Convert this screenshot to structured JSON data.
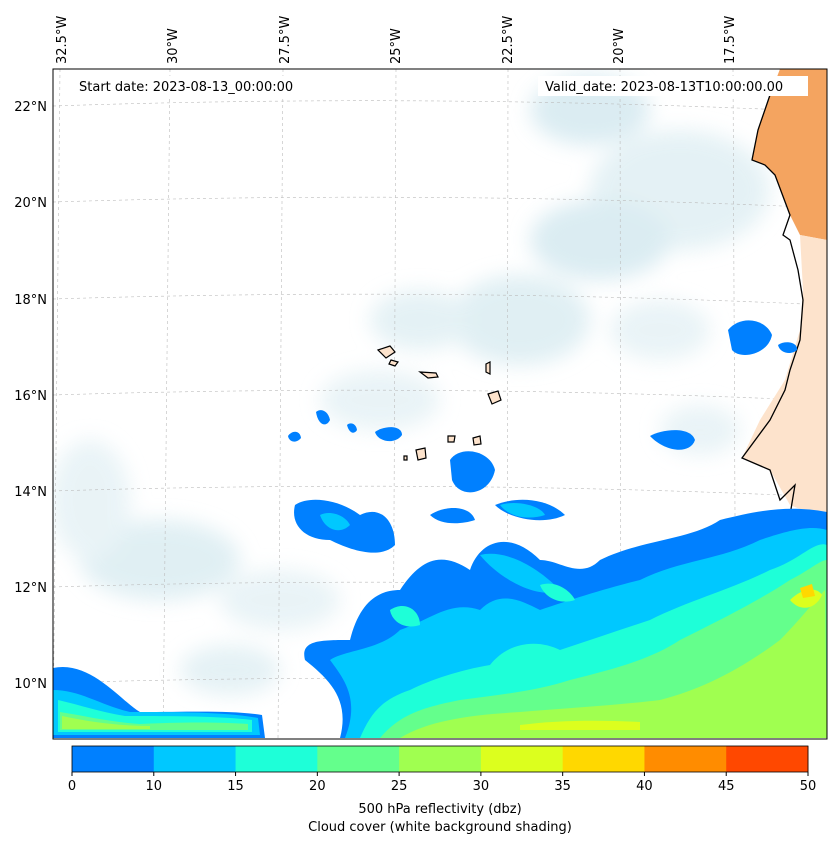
{
  "map": {
    "start_date": "Start date: 2023-08-13_00:00:00",
    "valid_date": "Valid_date: 2023-08-13T10:00:00.00",
    "lon_labels": [
      "32.5°W",
      "30°W",
      "27.5°W",
      "25°W",
      "22.5°W",
      "20°W",
      "17.5°W"
    ],
    "lat_labels": [
      "22°N",
      "20°N",
      "18°N",
      "16°N",
      "14°N",
      "12°N",
      "10°N"
    ],
    "colors": {
      "land": "#f4a460",
      "land_light": "#fde3cc",
      "cloud": "#cfe8ef",
      "coast": "#000000"
    }
  },
  "colorbar": {
    "label_line1": "500 hPa reflectivity (dbz)",
    "label_line2": "Cloud cover (white background shading)",
    "ticks": [
      "0",
      "10",
      "15",
      "20",
      "25",
      "30",
      "35",
      "40",
      "45",
      "50"
    ],
    "colors": [
      "#0080ff",
      "#00c8ff",
      "#1effd8",
      "#64ff8c",
      "#a0ff50",
      "#dcff1e",
      "#ffd800",
      "#ff8c00",
      "#ff4800"
    ]
  }
}
